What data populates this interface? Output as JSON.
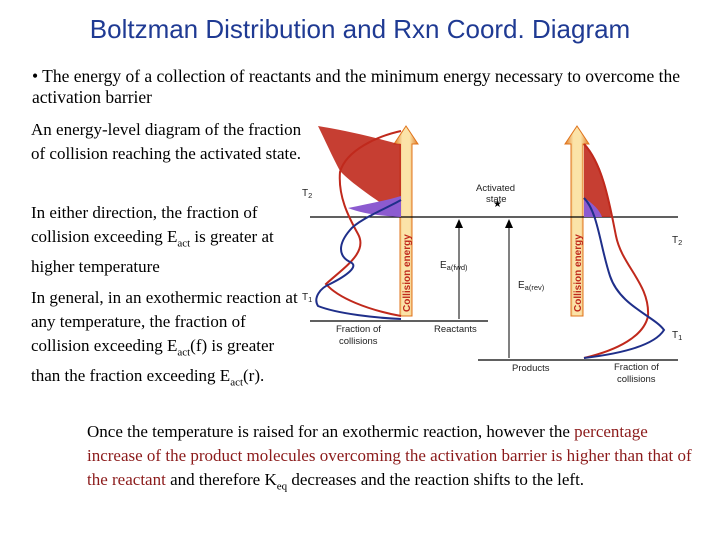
{
  "title": "Boltzman Distribution and Rxn Coord. Diagram",
  "bullet": "• The energy of a collection of reactants and the minimum energy necessary to overcome the activation barrier",
  "para1": "An energy-level diagram of the fraction of collision reaching the activated state.",
  "para2": {
    "before": "In either direction, the fraction of collision exceeding E",
    "sub": "act",
    "after": " is greater at higher temperature"
  },
  "para3": {
    "part1": "In general, in an exothermic reaction at any temperature, the fraction of collision exceeding E",
    "sub1": "act",
    "part2": "(f) is greater than the fraction exceeding E",
    "sub2": "act",
    "part3": "(r)."
  },
  "conclusion": {
    "part1": "Once the temperature is raised for an exothermic reaction, however the ",
    "highlight": "percentage increase of the product molecules overcoming the activation barrier is higher than that of the reactant",
    "part2": " and therefore K",
    "sub": "eq",
    "part3": " decreases and the reaction shifts to the left."
  },
  "diagram": {
    "t2_left": "T",
    "t2_left_sub": "2",
    "t1_left": "T",
    "t1_left_sub": "1",
    "t2_right": "T",
    "t2_right_sub": "2",
    "t1_right": "T",
    "t1_right_sub": "1",
    "activated_state_line1": "Activated",
    "activated_state_line2": "state",
    "ea_fwd": "E",
    "ea_fwd_sub": "a(fwd)",
    "ea_rev": "E",
    "ea_rev_sub": "a(rev)",
    "reactants": "Reactants",
    "products": "Products",
    "collision_energy_left": "Collision energy",
    "collision_energy_right": "Collision energy",
    "fraction_left_line1": "Fraction of",
    "fraction_left_line2": "collisions",
    "fraction_right_line1": "Fraction of",
    "fraction_right_line2": "collisions",
    "colors": {
      "t1": "#1f2f8a",
      "t2": "#c0291c",
      "arrow": "#e8731c",
      "purple": "#8c5bd0"
    }
  }
}
